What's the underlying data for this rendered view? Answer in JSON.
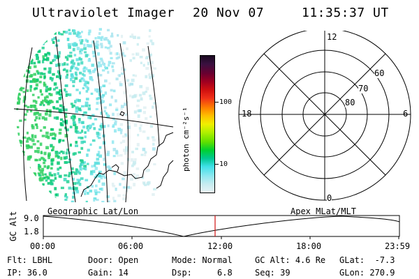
{
  "header": {
    "title": "Ultraviolet Imager",
    "date": "20 Nov 07",
    "time": "11:35:37 UT"
  },
  "colorbar": {
    "unit_label": "photon cm⁻²s⁻¹",
    "ticks": [
      "100",
      "10"
    ],
    "colors": [
      "#1a0a20",
      "#3a1040",
      "#6a0030",
      "#a00020",
      "#d01010",
      "#f03018",
      "#ff8000",
      "#ffc000",
      "#f0f000",
      "#b0f000",
      "#60e000",
      "#00d030",
      "#00c890",
      "#40e0e8",
      "#90e8f0",
      "#c8ecf0",
      "#e8f4f6"
    ]
  },
  "polar": {
    "lat_labels": [
      "80",
      "70",
      "60"
    ],
    "mlt_labels": {
      "top": "12",
      "right": "6",
      "bottom": "0",
      "left": "18"
    }
  },
  "timeline": {
    "left_label": "Geographic Lat/Lon",
    "right_label": "Apex MLat/MLT",
    "axis_title": "GC Alt",
    "y_ticks": [
      "9.0",
      "1.8"
    ],
    "x_ticks": [
      "00:00",
      "06:00",
      "12:00",
      "18:00",
      "23:59"
    ],
    "current_time_marker": "11:35:37",
    "marker_color": "#d01010"
  },
  "status": {
    "row1": [
      {
        "key": "Flt:",
        "value": "LBHL"
      },
      {
        "key": "Door:",
        "value": "Open"
      },
      {
        "key": "Mode:",
        "value": "Normal"
      },
      {
        "key": "GC Alt:",
        "value": "4.6 Re"
      },
      {
        "key": "GLat:",
        "value": "-7.3"
      }
    ],
    "row2": [
      {
        "key": "IP:",
        "value": "36.0"
      },
      {
        "key": "Gain:",
        "value": "14"
      },
      {
        "key": "Dsp:",
        "value": "6.8"
      },
      {
        "key": "Seq:",
        "value": "39"
      },
      {
        "key": "GLon:",
        "value": "270.9"
      }
    ]
  }
}
